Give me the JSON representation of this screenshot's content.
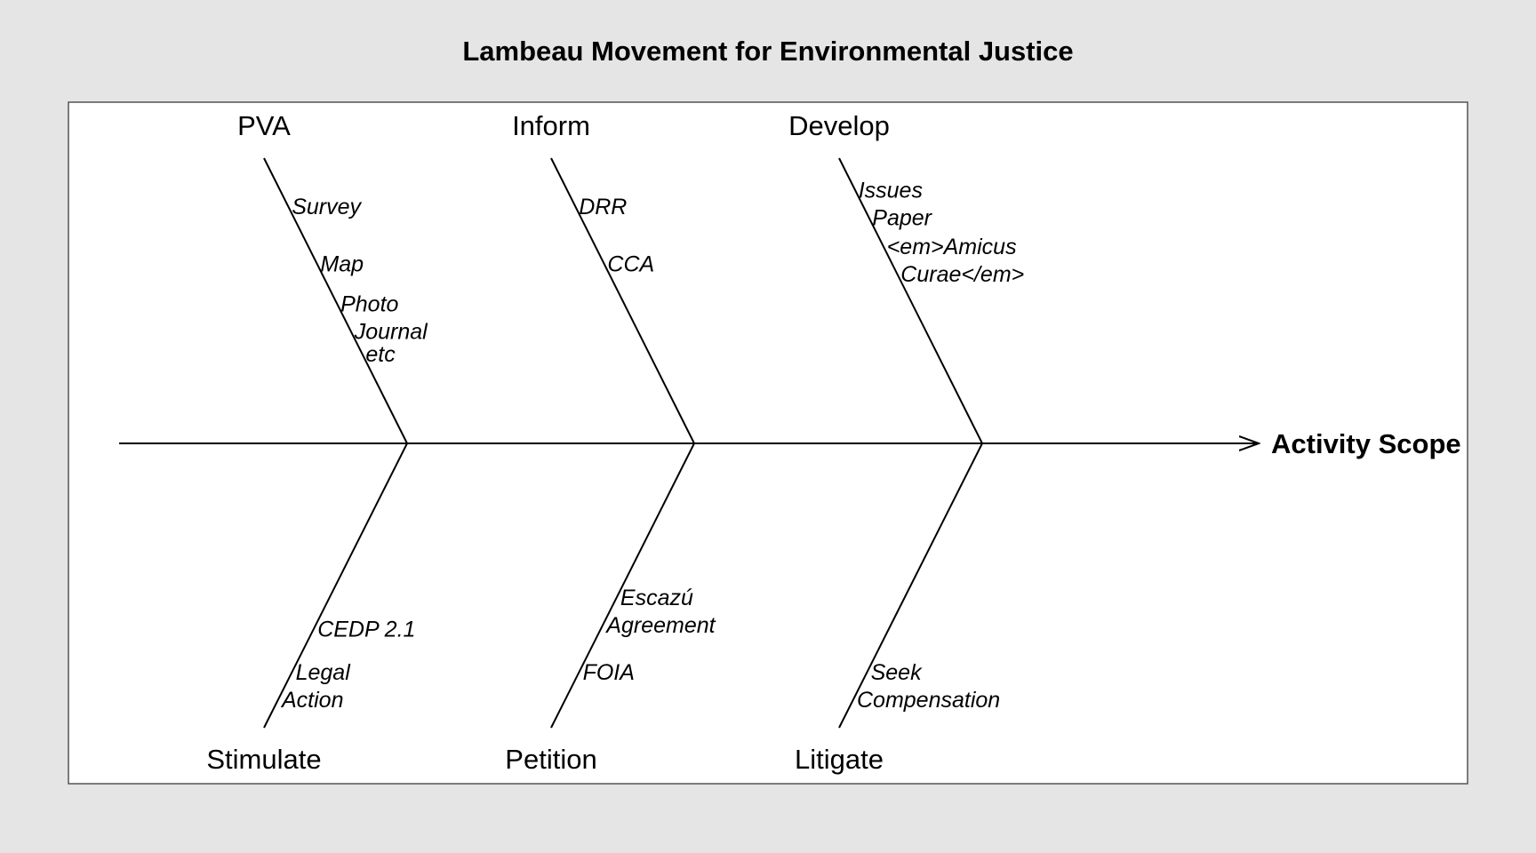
{
  "title": "Lambeau Movement for Environmental Justice",
  "effect": "Activity Scope",
  "colors": {
    "background": "#e5e5e5",
    "panel": "#ffffff",
    "ink": "#000000"
  },
  "categories": [
    {
      "label": "PVA",
      "side": "top",
      "causes": [
        [
          "Survey"
        ],
        [
          "Map"
        ],
        [
          "Photo",
          "Journal"
        ],
        [
          "etc"
        ]
      ]
    },
    {
      "label": "Inform",
      "side": "top",
      "causes": [
        [
          "DRR"
        ],
        [
          "CCA"
        ]
      ]
    },
    {
      "label": "Develop",
      "side": "top",
      "causes": [
        [
          "Issues",
          "Paper"
        ],
        [
          "<em>Amicus",
          "Curae</em>"
        ]
      ]
    },
    {
      "label": "Stimulate",
      "side": "bottom",
      "causes": [
        [
          "CEDP 2.1"
        ],
        [
          "Legal",
          "Action"
        ]
      ]
    },
    {
      "label": "Petition",
      "side": "bottom",
      "causes": [
        [
          "Escazú",
          "Agreement"
        ],
        [
          "FOIA"
        ]
      ]
    },
    {
      "label": "Litigate",
      "side": "bottom",
      "causes": [
        [
          "Seek",
          "Compensation"
        ]
      ]
    }
  ]
}
